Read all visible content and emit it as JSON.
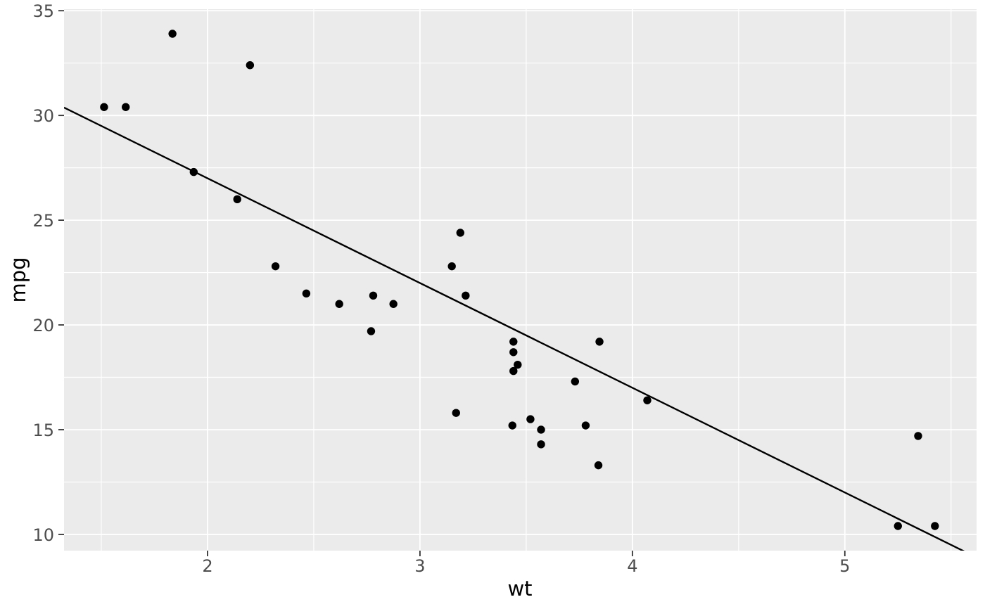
{
  "figure": {
    "background": "#FFFFFF",
    "panel_background": "#EBEBEB",
    "grid_color": "#FFFFFF",
    "point_color": "#000000",
    "trend_line_color": "#000000",
    "axis_text_color": "#4D4D4D",
    "axis_title_color": "#000000",
    "tick_mark_color": "#333333"
  },
  "chart_data": {
    "type": "scatter",
    "title": "",
    "xlabel": "wt",
    "ylabel": "mpg",
    "x_ticks": [
      2,
      3,
      4,
      5
    ],
    "y_ticks": [
      10,
      15,
      20,
      25,
      30,
      35
    ],
    "x_minor_ticks": [
      1.5,
      2.5,
      3.5,
      4.5,
      5.5
    ],
    "y_minor_ticks": [
      12.5,
      17.5,
      22.5,
      27.5,
      32.5
    ],
    "xlim": [
      1.3245,
      5.62
    ],
    "ylim": [
      9.225,
      35.075
    ],
    "grid": true,
    "legend": "none",
    "points": [
      {
        "wt": 2.62,
        "mpg": 21.0
      },
      {
        "wt": 2.875,
        "mpg": 21.0
      },
      {
        "wt": 2.32,
        "mpg": 22.8
      },
      {
        "wt": 3.215,
        "mpg": 21.4
      },
      {
        "wt": 3.44,
        "mpg": 18.7
      },
      {
        "wt": 3.46,
        "mpg": 18.1
      },
      {
        "wt": 3.57,
        "mpg": 14.3
      },
      {
        "wt": 3.19,
        "mpg": 24.4
      },
      {
        "wt": 3.15,
        "mpg": 22.8
      },
      {
        "wt": 3.44,
        "mpg": 19.2
      },
      {
        "wt": 3.44,
        "mpg": 17.8
      },
      {
        "wt": 4.07,
        "mpg": 16.4
      },
      {
        "wt": 3.73,
        "mpg": 17.3
      },
      {
        "wt": 3.78,
        "mpg": 15.2
      },
      {
        "wt": 5.25,
        "mpg": 10.4
      },
      {
        "wt": 5.424,
        "mpg": 10.4
      },
      {
        "wt": 5.345,
        "mpg": 14.7
      },
      {
        "wt": 2.2,
        "mpg": 32.4
      },
      {
        "wt": 1.615,
        "mpg": 30.4
      },
      {
        "wt": 1.835,
        "mpg": 33.9
      },
      {
        "wt": 2.465,
        "mpg": 21.5
      },
      {
        "wt": 3.52,
        "mpg": 15.5
      },
      {
        "wt": 3.435,
        "mpg": 15.2
      },
      {
        "wt": 3.84,
        "mpg": 13.3
      },
      {
        "wt": 3.845,
        "mpg": 19.2
      },
      {
        "wt": 1.935,
        "mpg": 27.3
      },
      {
        "wt": 2.14,
        "mpg": 26.0
      },
      {
        "wt": 2.78,
        "mpg": 21.4
      },
      {
        "wt": 3.17,
        "mpg": 15.8
      },
      {
        "wt": 2.77,
        "mpg": 19.7
      },
      {
        "wt": 3.57,
        "mpg": 15.0
      },
      {
        "wt": 1.513,
        "mpg": 30.4
      }
    ],
    "trend_line": {
      "type": "linear",
      "intercept": 37,
      "slope": -5
    }
  }
}
